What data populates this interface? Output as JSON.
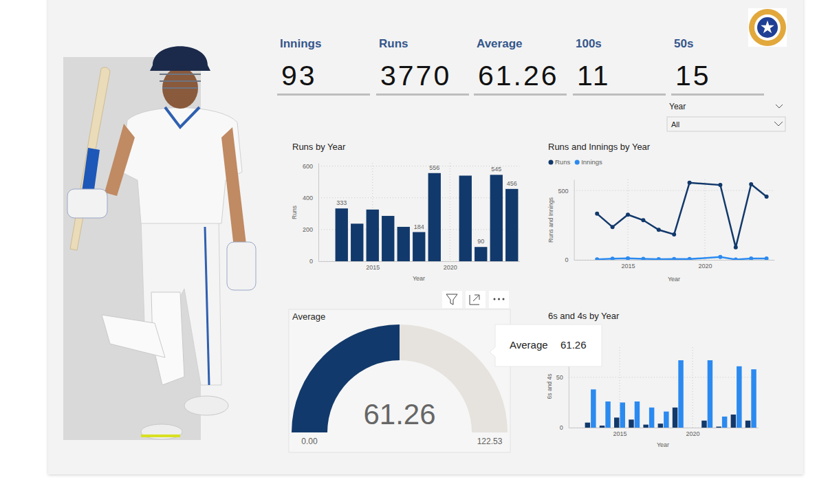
{
  "kpis": [
    {
      "label": "Innings",
      "value": 93
    },
    {
      "label": "Runs",
      "value": 3770
    },
    {
      "label": "Average",
      "value": 61.26
    },
    {
      "label": "100s",
      "value": 11
    },
    {
      "label": "50s",
      "value": 15
    }
  ],
  "slicer": {
    "label": "Year",
    "selection": "All"
  },
  "chart_data": [
    {
      "type": "bar",
      "title": "Runs by Year",
      "x_label": "Year",
      "y_label": "Runs",
      "x": [
        2013,
        2014,
        2015,
        2016,
        2017,
        2018,
        2019,
        2021,
        2022,
        2023,
        2024
      ],
      "values": [
        333,
        237,
        326,
        286,
        217,
        184,
        556,
        540,
        90,
        545,
        456
      ],
      "value_labels": [
        "333",
        null,
        null,
        null,
        null,
        "184",
        "556",
        null,
        "90",
        "545",
        "456"
      ],
      "color": "#12396b",
      "xlim": [
        2011.5,
        2024.5
      ],
      "xticks": [
        2015,
        2020
      ],
      "ylim": [
        0,
        620
      ],
      "yticks": [
        0,
        200,
        400,
        600
      ],
      "grid": true,
      "data_labels": true
    },
    {
      "type": "line",
      "title": "Runs and Innings by Year",
      "x_label": "Year",
      "y_label": "Runs and Innings",
      "x": [
        2013,
        2014,
        2015,
        2016,
        2017,
        2018,
        2019,
        2021,
        2022,
        2023,
        2024
      ],
      "series": [
        {
          "name": "Runs",
          "color": "#12396b",
          "values": [
            333,
            237,
            326,
            286,
            217,
            184,
            556,
            540,
            90,
            545,
            456
          ]
        },
        {
          "name": "Innings",
          "color": "#2b8af0",
          "values": [
            4,
            9,
            11,
            8,
            5,
            6,
            6,
            21,
            3,
            10,
            10
          ]
        }
      ],
      "xlim": [
        2011.5,
        2024.5
      ],
      "xticks": [
        2015,
        2020
      ],
      "ylim": [
        0,
        580
      ],
      "yticks": [
        0,
        500
      ],
      "grid": true,
      "legend": "top-left",
      "marker": "circle"
    },
    {
      "type": "gauge",
      "title": "Average",
      "value": 61.26,
      "color": "#12396b",
      "ylim": [
        0,
        122.53
      ],
      "yticks": [
        {
          "value": 0,
          "label": "0.00"
        },
        122.53
      ],
      "tooltip": {
        "label": "Average",
        "value": 61.26
      }
    },
    {
      "type": "bar",
      "title": "6s and 4s by Year",
      "x_label": "Year",
      "y_label": "6s and 4s",
      "x": [
        2013,
        2014,
        2015,
        2016,
        2017,
        2018,
        2019,
        2021,
        2022,
        2023,
        2024
      ],
      "series": [
        {
          "color": "#12396b",
          "values": [
            5,
            2,
            10,
            8,
            3,
            4,
            20,
            7,
            1,
            13,
            7
          ]
        },
        {
          "color": "#2b8af0",
          "values": [
            38,
            26,
            25,
            26,
            20,
            16,
            67,
            67,
            11,
            61,
            58
          ]
        }
      ],
      "xlim": [
        2011.5,
        2024.5
      ],
      "xticks": [
        2015,
        2020
      ],
      "ylim": [
        0,
        80
      ],
      "yticks": [
        0,
        50
      ],
      "grid": true
    }
  ]
}
